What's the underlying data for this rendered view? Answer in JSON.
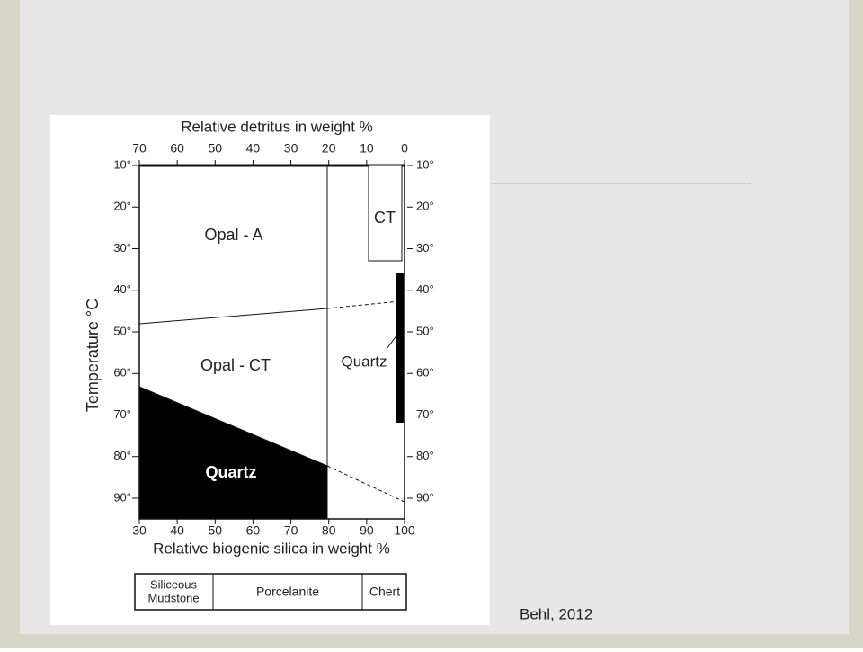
{
  "figure": {
    "top_axis_title": "Relative detritus in weight %",
    "top_ticks": [
      "70",
      "60",
      "50",
      "40",
      "30",
      "20",
      "10",
      "0"
    ],
    "bottom_axis_title": "Relative biogenic silica in weight %",
    "bottom_ticks": [
      "30",
      "40",
      "50",
      "60",
      "70",
      "80",
      "90",
      "100"
    ],
    "y_axis_title": "Temperature °C",
    "temperature_ticks": [
      "10°",
      "20°",
      "30°",
      "40°",
      "50°",
      "60°",
      "70°",
      "80°",
      "90°"
    ],
    "regions": {
      "opal_a": "Opal - A",
      "opal_ct": "Opal - CT",
      "quartz": "Quartz",
      "ct": "CT",
      "quartz_bar": "Quartz"
    },
    "facies": [
      [
        "Siliceous",
        "Mudstone"
      ],
      [
        "Porcelanite"
      ],
      [
        "Chert"
      ]
    ]
  },
  "credit": "Behl, 2012"
}
